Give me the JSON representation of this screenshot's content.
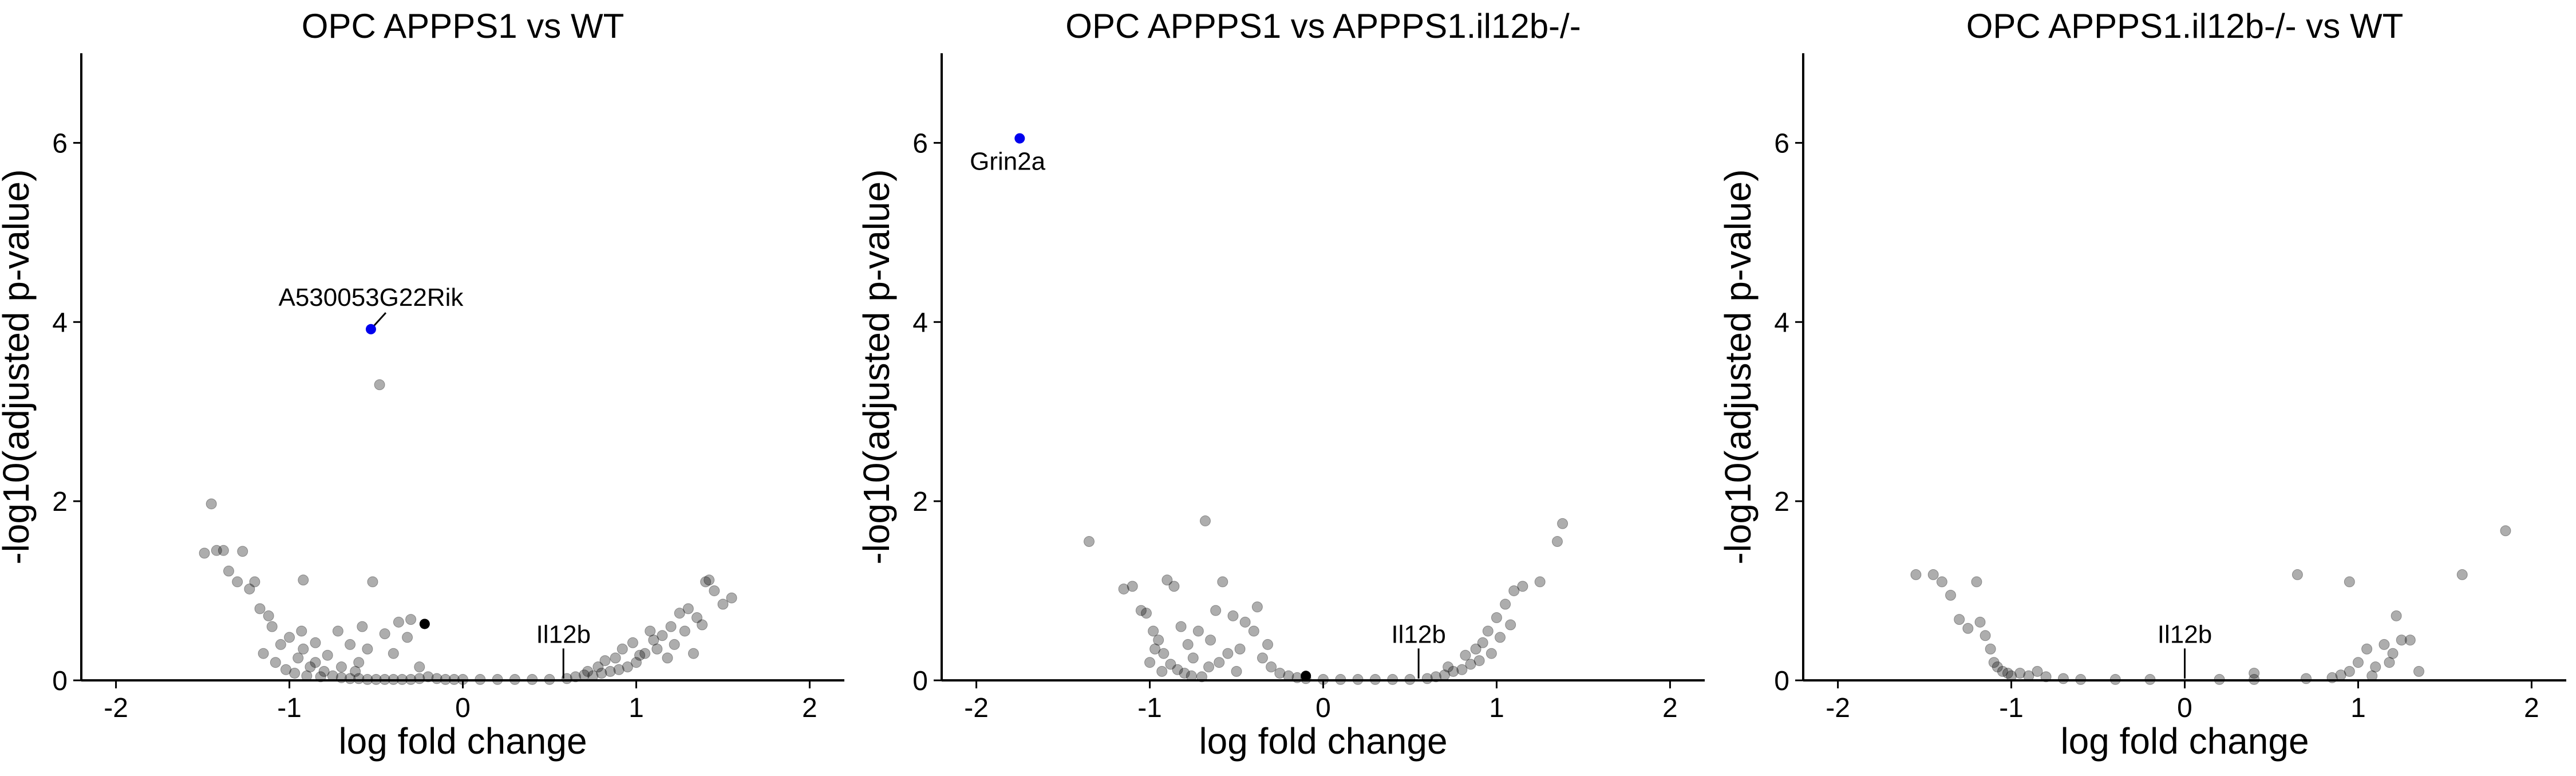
{
  "chart_data": [
    {
      "type": "scatter",
      "title": "OPC APPPS1 vs WT",
      "xlabel": "log fold change",
      "ylabel": "-log10(adjusted p-value)",
      "xlim": [
        -2.2,
        2.2
      ],
      "ylim": [
        0,
        7
      ],
      "xticks": [
        -2,
        -1,
        0,
        1,
        2
      ],
      "yticks": [
        0,
        2,
        4,
        6
      ],
      "grid": false,
      "highlight_color": "#0000ee",
      "point_color": "#000000",
      "points": [
        {
          "x": -1.49,
          "y": 1.42
        },
        {
          "x": -1.45,
          "y": 1.97
        },
        {
          "x": -1.42,
          "y": 1.45
        },
        {
          "x": -1.38,
          "y": 1.45
        },
        {
          "x": -1.35,
          "y": 1.22
        },
        {
          "x": -1.3,
          "y": 1.1
        },
        {
          "x": -1.27,
          "y": 1.44
        },
        {
          "x": -1.23,
          "y": 1.02
        },
        {
          "x": -1.2,
          "y": 1.1
        },
        {
          "x": -1.17,
          "y": 0.8
        },
        {
          "x": -1.12,
          "y": 0.72
        },
        {
          "x": -1.1,
          "y": 0.6
        },
        {
          "x": -1.05,
          "y": 0.4
        },
        {
          "x": -1.0,
          "y": 0.48
        },
        {
          "x": -0.95,
          "y": 0.25
        },
        {
          "x": -0.92,
          "y": 0.35
        },
        {
          "x": -0.88,
          "y": 0.15
        },
        {
          "x": -0.85,
          "y": 0.2
        },
        {
          "x": -0.8,
          "y": 0.1
        },
        {
          "x": -0.75,
          "y": 0.05
        },
        {
          "x": -1.15,
          "y": 0.3
        },
        {
          "x": -1.08,
          "y": 0.2
        },
        {
          "x": -1.02,
          "y": 0.12
        },
        {
          "x": -0.97,
          "y": 0.08
        },
        {
          "x": -0.93,
          "y": 0.55
        },
        {
          "x": -0.9,
          "y": 0.05
        },
        {
          "x": -0.82,
          "y": 0.04
        },
        {
          "x": -0.7,
          "y": 0.03
        },
        {
          "x": -0.65,
          "y": 0.02
        },
        {
          "x": -0.6,
          "y": 0.02
        },
        {
          "x": -0.55,
          "y": 0.01
        },
        {
          "x": -0.5,
          "y": 0.01
        },
        {
          "x": -0.45,
          "y": 0.01
        },
        {
          "x": -0.4,
          "y": 0.01
        },
        {
          "x": -0.35,
          "y": 0.01
        },
        {
          "x": -0.3,
          "y": 0.01
        },
        {
          "x": -0.25,
          "y": 0.02
        },
        {
          "x": -0.2,
          "y": 0.04
        },
        {
          "x": -0.15,
          "y": 0.02
        },
        {
          "x": -0.1,
          "y": 0.01
        },
        {
          "x": -0.05,
          "y": 0.01
        },
        {
          "x": 0.0,
          "y": 0.01
        },
        {
          "x": 0.1,
          "y": 0.01
        },
        {
          "x": 0.2,
          "y": 0.01
        },
        {
          "x": 0.3,
          "y": 0.01
        },
        {
          "x": 0.4,
          "y": 0.01
        },
        {
          "x": 0.5,
          "y": 0.01
        },
        {
          "x": -0.92,
          "y": 1.12
        },
        {
          "x": -0.72,
          "y": 0.55
        },
        {
          "x": -0.65,
          "y": 0.4
        },
        {
          "x": -0.58,
          "y": 0.6
        },
        {
          "x": -0.45,
          "y": 0.52
        },
        {
          "x": -0.4,
          "y": 0.3
        },
        {
          "x": -0.32,
          "y": 0.48
        },
        {
          "x": -0.25,
          "y": 0.15
        },
        {
          "x": -0.52,
          "y": 1.1
        },
        {
          "x": -0.48,
          "y": 3.3
        },
        {
          "x": -0.37,
          "y": 0.65
        },
        {
          "x": -0.3,
          "y": 0.68
        },
        {
          "x": -0.6,
          "y": 0.2
        },
        {
          "x": -0.78,
          "y": 0.28
        },
        {
          "x": -0.85,
          "y": 0.42
        },
        {
          "x": -0.7,
          "y": 0.15
        },
        {
          "x": -0.62,
          "y": 0.1
        },
        {
          "x": -0.55,
          "y": 0.35
        },
        {
          "x": 0.6,
          "y": 0.02
        },
        {
          "x": 0.65,
          "y": 0.04
        },
        {
          "x": 0.7,
          "y": 0.06
        },
        {
          "x": 0.75,
          "y": 0.05
        },
        {
          "x": 0.8,
          "y": 0.08
        },
        {
          "x": 0.85,
          "y": 0.1
        },
        {
          "x": 0.9,
          "y": 0.12
        },
        {
          "x": 0.95,
          "y": 0.15
        },
        {
          "x": 1.0,
          "y": 0.2
        },
        {
          "x": 1.05,
          "y": 0.3
        },
        {
          "x": 1.1,
          "y": 0.45
        },
        {
          "x": 1.15,
          "y": 0.5
        },
        {
          "x": 1.2,
          "y": 0.6
        },
        {
          "x": 1.25,
          "y": 0.75
        },
        {
          "x": 1.3,
          "y": 0.8
        },
        {
          "x": 1.35,
          "y": 0.7
        },
        {
          "x": 1.4,
          "y": 1.1
        },
        {
          "x": 1.42,
          "y": 1.12
        },
        {
          "x": 1.45,
          "y": 1.0
        },
        {
          "x": 1.5,
          "y": 0.85
        },
        {
          "x": 1.55,
          "y": 0.92
        },
        {
          "x": 0.92,
          "y": 0.35
        },
        {
          "x": 0.98,
          "y": 0.42
        },
        {
          "x": 1.02,
          "y": 0.28
        },
        {
          "x": 1.08,
          "y": 0.55
        },
        {
          "x": 1.12,
          "y": 0.35
        },
        {
          "x": 1.18,
          "y": 0.25
        },
        {
          "x": 1.22,
          "y": 0.4
        },
        {
          "x": 1.28,
          "y": 0.55
        },
        {
          "x": 1.33,
          "y": 0.3
        },
        {
          "x": 1.38,
          "y": 0.62
        },
        {
          "x": 0.82,
          "y": 0.22
        },
        {
          "x": 0.78,
          "y": 0.15
        },
        {
          "x": 0.72,
          "y": 0.1
        },
        {
          "x": 0.88,
          "y": 0.25
        }
      ],
      "highlight_points": [
        {
          "x": -0.22,
          "y": 0.63,
          "color": "#000000"
        }
      ],
      "labeled_points": [
        {
          "label": "A530053G22Rik",
          "x": -0.53,
          "y": 3.92,
          "color": "#0000ee",
          "label_x": -0.53,
          "label_y": 4.18
        },
        {
          "label": "Il12b",
          "x": 0.58,
          "y": 0.02,
          "color": "#000000",
          "label_x": 0.58,
          "label_y": 0.42
        }
      ]
    },
    {
      "type": "scatter",
      "title": "OPC APPPS1 vs APPPS1.il12b-/-",
      "xlabel": "log fold change",
      "ylabel": "-log10(adjusted p-value)",
      "xlim": [
        -2.2,
        2.2
      ],
      "ylim": [
        0,
        7
      ],
      "xticks": [
        -2,
        -1,
        0,
        1,
        2
      ],
      "yticks": [
        0,
        2,
        4,
        6
      ],
      "grid": false,
      "highlight_color": "#0000ee",
      "point_color": "#000000",
      "points": [
        {
          "x": -1.35,
          "y": 1.55
        },
        {
          "x": -1.15,
          "y": 1.02
        },
        {
          "x": -1.1,
          "y": 1.05
        },
        {
          "x": -1.05,
          "y": 0.78
        },
        {
          "x": -1.02,
          "y": 0.75
        },
        {
          "x": -0.98,
          "y": 0.55
        },
        {
          "x": -0.95,
          "y": 0.45
        },
        {
          "x": -0.92,
          "y": 0.3
        },
        {
          "x": -0.9,
          "y": 1.12
        },
        {
          "x": -0.86,
          "y": 1.05
        },
        {
          "x": -0.82,
          "y": 0.6
        },
        {
          "x": -0.78,
          "y": 0.4
        },
        {
          "x": -0.75,
          "y": 0.25
        },
        {
          "x": -0.72,
          "y": 0.55
        },
        {
          "x": -0.68,
          "y": 1.78
        },
        {
          "x": -0.65,
          "y": 0.45
        },
        {
          "x": -0.6,
          "y": 0.2
        },
        {
          "x": -0.55,
          "y": 0.3
        },
        {
          "x": -0.5,
          "y": 0.1
        },
        {
          "x": -0.45,
          "y": 0.65
        },
        {
          "x": -0.4,
          "y": 0.55
        },
        {
          "x": -0.35,
          "y": 0.25
        },
        {
          "x": -0.3,
          "y": 0.15
        },
        {
          "x": -0.25,
          "y": 0.08
        },
        {
          "x": -0.2,
          "y": 0.05
        },
        {
          "x": -0.62,
          "y": 0.78
        },
        {
          "x": -0.58,
          "y": 1.1
        },
        {
          "x": -0.52,
          "y": 0.72
        },
        {
          "x": -0.38,
          "y": 0.82
        },
        {
          "x": -0.32,
          "y": 0.4
        },
        {
          "x": -0.88,
          "y": 0.18
        },
        {
          "x": -0.84,
          "y": 0.12
        },
        {
          "x": -0.8,
          "y": 0.08
        },
        {
          "x": -0.76,
          "y": 0.05
        },
        {
          "x": -0.7,
          "y": 0.04
        },
        {
          "x": -0.15,
          "y": 0.03
        },
        {
          "x": -0.1,
          "y": 0.02
        },
        {
          "x": 0.0,
          "y": 0.01
        },
        {
          "x": 0.1,
          "y": 0.01
        },
        {
          "x": 0.2,
          "y": 0.01
        },
        {
          "x": 0.3,
          "y": 0.01
        },
        {
          "x": 0.4,
          "y": 0.01
        },
        {
          "x": 0.5,
          "y": 0.01
        },
        {
          "x": 0.6,
          "y": 0.02
        },
        {
          "x": 0.65,
          "y": 0.04
        },
        {
          "x": 0.7,
          "y": 0.06
        },
        {
          "x": 0.75,
          "y": 0.1
        },
        {
          "x": 0.8,
          "y": 0.12
        },
        {
          "x": 0.85,
          "y": 0.18
        },
        {
          "x": 0.9,
          "y": 0.22
        },
        {
          "x": 0.95,
          "y": 0.55
        },
        {
          "x": 1.0,
          "y": 0.7
        },
        {
          "x": 1.05,
          "y": 0.85
        },
        {
          "x": 1.1,
          "y": 1.0
        },
        {
          "x": 1.15,
          "y": 1.05
        },
        {
          "x": 1.25,
          "y": 1.1
        },
        {
          "x": 1.35,
          "y": 1.55
        },
        {
          "x": 1.38,
          "y": 1.75
        },
        {
          "x": 0.92,
          "y": 0.42
        },
        {
          "x": 0.97,
          "y": 0.3
        },
        {
          "x": 0.88,
          "y": 0.35
        },
        {
          "x": 1.02,
          "y": 0.48
        },
        {
          "x": 1.08,
          "y": 0.62
        },
        {
          "x": 0.82,
          "y": 0.28
        },
        {
          "x": 0.72,
          "y": 0.15
        },
        {
          "x": -1.0,
          "y": 0.2
        },
        {
          "x": -0.93,
          "y": 0.1
        },
        {
          "x": -0.97,
          "y": 0.35
        },
        {
          "x": -0.66,
          "y": 0.15
        },
        {
          "x": -0.48,
          "y": 0.35
        }
      ],
      "highlight_points": [
        {
          "x": -0.1,
          "y": 0.05,
          "color": "#000000"
        }
      ],
      "labeled_points": [
        {
          "label": "Grin2a",
          "x": -1.75,
          "y": 6.05,
          "color": "#0000ee",
          "label_x": -1.82,
          "label_y": 5.7
        },
        {
          "label": "Il12b",
          "x": 0.55,
          "y": 0.02,
          "color": "#000000",
          "label_x": 0.55,
          "label_y": 0.42
        }
      ]
    },
    {
      "type": "scatter",
      "title": "OPC APPPS1.il12b-/- vs WT",
      "xlabel": "log fold change",
      "ylabel": "-log10(adjusted p-value)",
      "xlim": [
        -2.2,
        2.2
      ],
      "ylim": [
        0,
        7
      ],
      "xticks": [
        -2,
        -1,
        0,
        1,
        2
      ],
      "yticks": [
        0,
        2,
        4,
        6
      ],
      "grid": false,
      "highlight_color": "#0000ee",
      "point_color": "#000000",
      "points": [
        {
          "x": -1.55,
          "y": 1.18
        },
        {
          "x": -1.45,
          "y": 1.18
        },
        {
          "x": -1.4,
          "y": 1.1
        },
        {
          "x": -1.35,
          "y": 0.95
        },
        {
          "x": -1.3,
          "y": 0.68
        },
        {
          "x": -1.25,
          "y": 0.58
        },
        {
          "x": -1.2,
          "y": 1.1
        },
        {
          "x": -1.18,
          "y": 0.65
        },
        {
          "x": -1.15,
          "y": 0.5
        },
        {
          "x": -1.12,
          "y": 0.35
        },
        {
          "x": -1.1,
          "y": 0.2
        },
        {
          "x": -1.08,
          "y": 0.15
        },
        {
          "x": -1.05,
          "y": 0.1
        },
        {
          "x": -1.02,
          "y": 0.08
        },
        {
          "x": -1.0,
          "y": 0.05
        },
        {
          "x": -0.95,
          "y": 0.08
        },
        {
          "x": -0.9,
          "y": 0.05
        },
        {
          "x": -0.85,
          "y": 0.1
        },
        {
          "x": -0.8,
          "y": 0.04
        },
        {
          "x": -0.7,
          "y": 0.02
        },
        {
          "x": -0.6,
          "y": 0.01
        },
        {
          "x": -0.4,
          "y": 0.01
        },
        {
          "x": -0.2,
          "y": 0.01
        },
        {
          "x": 0.2,
          "y": 0.01
        },
        {
          "x": 0.4,
          "y": 0.01
        },
        {
          "x": 0.7,
          "y": 0.02
        },
        {
          "x": 0.85,
          "y": 0.03
        },
        {
          "x": 0.9,
          "y": 0.06
        },
        {
          "x": 0.95,
          "y": 0.1
        },
        {
          "x": 1.0,
          "y": 0.2
        },
        {
          "x": 1.05,
          "y": 0.35
        },
        {
          "x": 1.1,
          "y": 0.15
        },
        {
          "x": 1.15,
          "y": 0.4
        },
        {
          "x": 1.2,
          "y": 0.3
        },
        {
          "x": 1.25,
          "y": 0.45
        },
        {
          "x": 1.3,
          "y": 0.45
        },
        {
          "x": 1.35,
          "y": 0.1
        },
        {
          "x": 0.65,
          "y": 1.18
        },
        {
          "x": 0.95,
          "y": 1.1
        },
        {
          "x": 1.6,
          "y": 1.18
        },
        {
          "x": 1.85,
          "y": 1.67
        },
        {
          "x": 1.22,
          "y": 0.72
        },
        {
          "x": 0.4,
          "y": 0.08
        },
        {
          "x": 1.18,
          "y": 0.2
        },
        {
          "x": 1.08,
          "y": 0.05
        }
      ],
      "highlight_points": [],
      "labeled_points": [
        {
          "label": "Il12b",
          "x": 0.0,
          "y": 0.02,
          "color": "#000000",
          "label_x": 0.0,
          "label_y": 0.42
        }
      ]
    }
  ]
}
